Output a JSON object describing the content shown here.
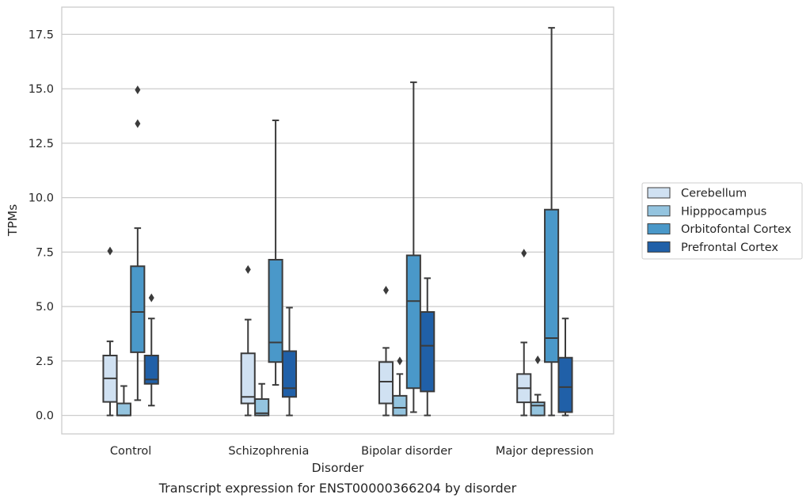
{
  "caption": "Transcript expression for ENST00000366204 by disorder",
  "chart_data": {
    "type": "box",
    "xlabel": "Disorder",
    "ylabel": "TPMs",
    "categories": [
      "Control",
      "Schizophrenia",
      "Bipolar disorder",
      "Major depression"
    ],
    "ylim": [
      -0.85,
      18.75
    ],
    "yticks": [
      "0.0",
      "2.5",
      "5.0",
      "7.5",
      "10.0",
      "12.5",
      "15.0",
      "17.5"
    ],
    "grid": "horizontal",
    "legend": {
      "placement": "right",
      "entries": [
        "Cerebellum",
        "Hipppocampus",
        "Orbitofontal Cortex",
        "Prefrontal Cortex"
      ]
    },
    "series": [
      {
        "name": "Cerebellum",
        "color": "#d0e1f2",
        "boxes": [
          {
            "min": 0.0,
            "q1": 0.62,
            "median": 1.7,
            "q3": 2.75,
            "max": 3.4,
            "outliers": [
              7.55
            ]
          },
          {
            "min": 0.0,
            "q1": 0.55,
            "median": 0.85,
            "q3": 2.85,
            "max": 4.4,
            "outliers": [
              6.7
            ]
          },
          {
            "min": 0.0,
            "q1": 0.55,
            "median": 1.55,
            "q3": 2.45,
            "max": 3.1,
            "outliers": [
              5.75
            ]
          },
          {
            "min": 0.0,
            "q1": 0.6,
            "median": 1.25,
            "q3": 1.9,
            "max": 3.35,
            "outliers": [
              7.45
            ]
          }
        ]
      },
      {
        "name": "Hipppocampus",
        "color": "#94c4df",
        "boxes": [
          {
            "min": 0.0,
            "q1": 0.0,
            "median": 0.0,
            "q3": 0.55,
            "max": 1.35,
            "outliers": []
          },
          {
            "min": 0.0,
            "q1": 0.0,
            "median": 0.1,
            "q3": 0.75,
            "max": 1.45,
            "outliers": []
          },
          {
            "min": 0.0,
            "q1": 0.0,
            "median": 0.35,
            "q3": 0.9,
            "max": 1.9,
            "outliers": [
              2.5
            ]
          },
          {
            "min": 0.0,
            "q1": 0.0,
            "median": 0.45,
            "q3": 0.6,
            "max": 0.95,
            "outliers": [
              2.55
            ]
          }
        ]
      },
      {
        "name": "Orbitofontal Cortex",
        "color": "#4a98c9",
        "boxes": [
          {
            "min": 0.7,
            "q1": 2.9,
            "median": 4.75,
            "q3": 6.85,
            "max": 8.6,
            "outliers": [
              13.4,
              14.95
            ]
          },
          {
            "min": 1.4,
            "q1": 2.45,
            "median": 3.35,
            "q3": 7.15,
            "max": 13.55,
            "outliers": []
          },
          {
            "min": 0.15,
            "q1": 1.25,
            "median": 5.25,
            "q3": 7.35,
            "max": 15.3,
            "outliers": []
          },
          {
            "min": 0.0,
            "q1": 2.45,
            "median": 3.55,
            "q3": 9.45,
            "max": 17.8,
            "outliers": []
          }
        ]
      },
      {
        "name": "Prefrontal Cortex",
        "color": "#2060a8",
        "boxes": [
          {
            "min": 0.45,
            "q1": 1.45,
            "median": 1.65,
            "q3": 2.75,
            "max": 4.45,
            "outliers": [
              5.4
            ]
          },
          {
            "min": 0.0,
            "q1": 0.85,
            "median": 1.25,
            "q3": 2.95,
            "max": 4.95,
            "outliers": []
          },
          {
            "min": 0.0,
            "q1": 1.1,
            "median": 3.2,
            "q3": 4.75,
            "max": 6.3,
            "outliers": []
          },
          {
            "min": 0.0,
            "q1": 0.15,
            "median": 1.3,
            "q3": 2.65,
            "max": 4.45,
            "outliers": []
          }
        ]
      }
    ]
  }
}
